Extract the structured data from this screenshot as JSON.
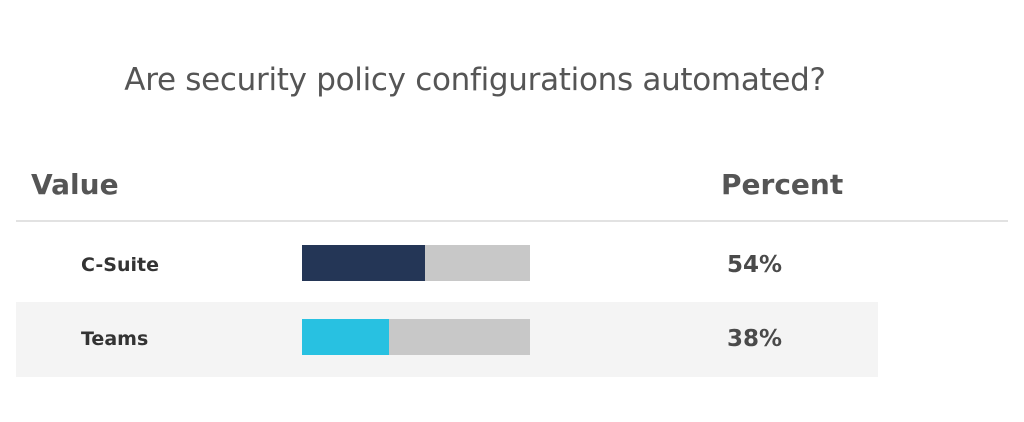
{
  "chart_data": {
    "type": "bar",
    "title": "Are security policy configurations automated?",
    "column_headers": {
      "value": "Value",
      "percent": "Percent"
    },
    "categories": [
      "C-Suite",
      "Teams"
    ],
    "values": [
      54,
      38
    ],
    "value_labels": [
      "54%",
      "38%"
    ],
    "bar_colors": [
      "#243656",
      "#28c1e1"
    ],
    "track_color": "#c8c8c8",
    "ylim": [
      0,
      100
    ]
  }
}
